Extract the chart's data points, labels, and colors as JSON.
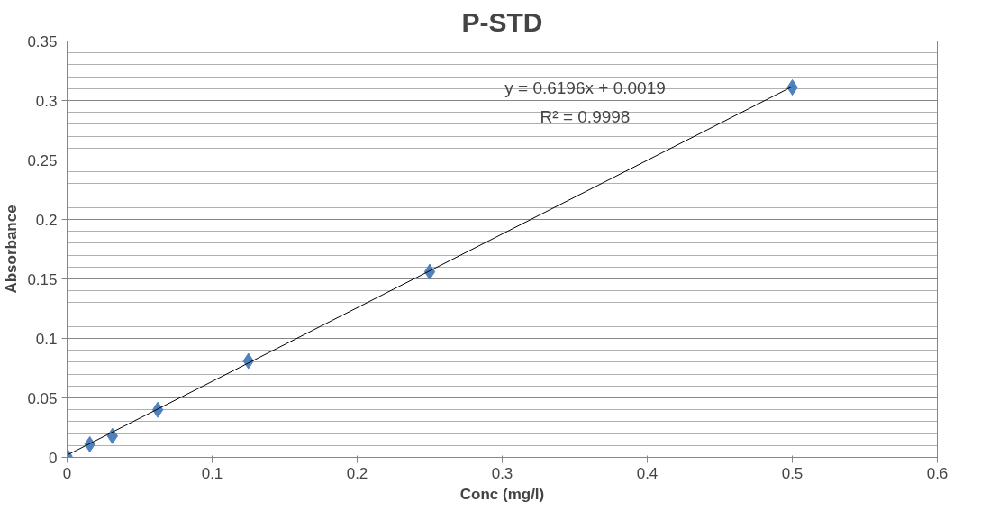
{
  "chart_data": {
    "type": "scatter",
    "title": "P-STD",
    "xlabel": "Conc (mg/l)",
    "ylabel": "Absorbance",
    "annotations": [
      "y = 0.6196x + 0.0019",
      "R² = 0.9998"
    ],
    "series": [
      {
        "color": "#4f81bd",
        "marker": "diamond",
        "x": [
          0,
          0.015625,
          0.03125,
          0.0625,
          0.125,
          0.25,
          0.5
        ],
        "values": [
          0.001,
          0.011,
          0.018,
          0.04,
          0.081,
          0.156,
          0.311
        ]
      },
      {
        "type": "line",
        "color": "#000000",
        "x": [
          0,
          0.5
        ],
        "values": [
          0.0019,
          0.3117
        ]
      }
    ],
    "xlim": [
      0,
      0.6
    ],
    "ylim": [
      0,
      0.35
    ],
    "xticks": [
      0,
      0.1,
      0.2,
      0.3,
      0.4,
      0.5,
      0.6
    ],
    "yticks": [
      0,
      0.05,
      0.1,
      0.15,
      0.2,
      0.25,
      0.3,
      0.35
    ],
    "grid": "y"
  }
}
